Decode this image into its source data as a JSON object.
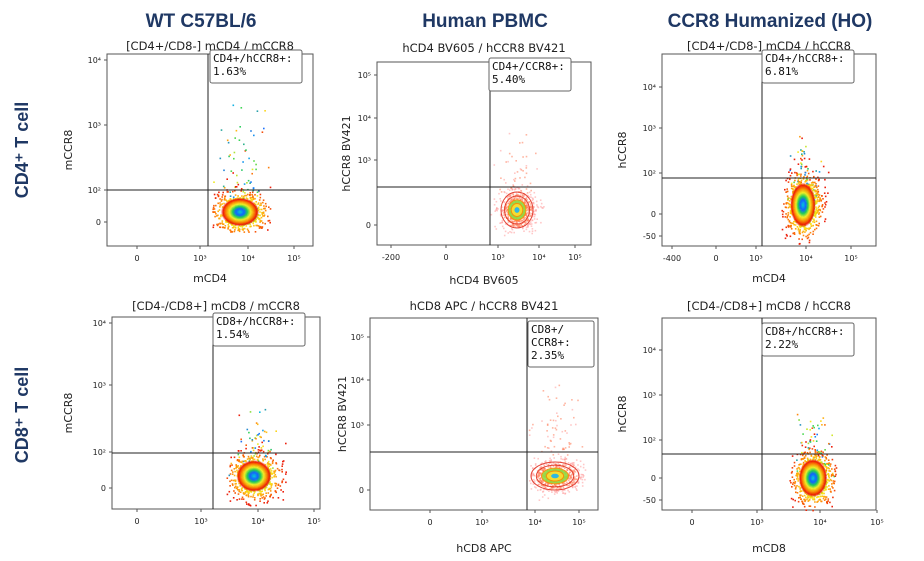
{
  "chart_data": [
    {
      "type": "scatter",
      "title": "[CD4+/CD8-] mCD4 / mCCR8",
      "xlabel": "mCD4",
      "ylabel": "mCCR8",
      "x_ticks": [
        "0",
        "10³",
        "10⁴",
        "10⁵"
      ],
      "y_ticks": [
        "0",
        "10²",
        "10³",
        "10⁴"
      ],
      "gate_label": [
        "CD4+/hCCR8+:",
        "1.63%"
      ],
      "gate_percent": 1.63,
      "colormap": "jet-density"
    },
    {
      "type": "scatter",
      "title": "hCD4 BV605 / hCCR8 BV421",
      "xlabel": "hCD4 BV605",
      "ylabel": "hCCR8 BV421",
      "x_ticks": [
        "-200",
        "0",
        "10³",
        "10⁴",
        "10⁵"
      ],
      "y_ticks": [
        "0",
        "10³",
        "10⁴",
        "10⁵"
      ],
      "gate_label": [
        "CD4+/CCR8+:",
        "5.40%"
      ],
      "gate_percent": 5.4,
      "colormap": "contour-density"
    },
    {
      "type": "scatter",
      "title": "[CD4+/CD8-] mCD4 / hCCR8",
      "xlabel": "mCD4",
      "ylabel": "hCCR8",
      "x_ticks": [
        "-400",
        "0",
        "10³",
        "10⁴",
        "10⁵"
      ],
      "y_ticks": [
        "-50",
        "0",
        "10²",
        "10³",
        "10⁴"
      ],
      "gate_label": [
        "CD4+/hCCR8+:",
        "6.81%"
      ],
      "gate_percent": 6.81,
      "colormap": "jet-density"
    },
    {
      "type": "scatter",
      "title": "[CD4-/CD8+] mCD8 / mCCR8",
      "xlabel": "",
      "ylabel": "mCCR8",
      "x_ticks": [
        "0",
        "10³",
        "10⁴",
        "10⁵"
      ],
      "y_ticks": [
        "0",
        "10²",
        "10³",
        "10⁴"
      ],
      "gate_label": [
        "CD8+/hCCR8+:",
        "1.54%"
      ],
      "gate_percent": 1.54,
      "colormap": "jet-density"
    },
    {
      "type": "scatter",
      "title": "hCD8 APC / hCCR8 BV421",
      "xlabel": "hCD8 APC",
      "ylabel": "hCCR8 BV421",
      "x_ticks": [
        "0",
        "10³",
        "10⁴",
        "10⁵"
      ],
      "y_ticks": [
        "0",
        "10³",
        "10⁴",
        "10⁵"
      ],
      "gate_label": [
        "CD8+/",
        "CCR8+:",
        "2.35%"
      ],
      "gate_percent": 2.35,
      "colormap": "contour-density"
    },
    {
      "type": "scatter",
      "title": "[CD4-/CD8+] mCD8 / hCCR8",
      "xlabel": "mCD8",
      "ylabel": "hCCR8",
      "x_ticks": [
        "0",
        "10³",
        "10⁴",
        "10⁵"
      ],
      "y_ticks": [
        "-50",
        "0",
        "10²",
        "10³",
        "10⁴"
      ],
      "gate_label": [
        "CD8+/hCCR8+:",
        "2.22%"
      ],
      "gate_percent": 2.22,
      "colormap": "jet-density"
    }
  ],
  "column_titles": [
    "WT C57BL/6",
    "Human PBMC",
    "CCR8 Humanized (HO)"
  ],
  "row_titles": [
    "CD4⁺ T cell",
    "CD8⁺ T cell"
  ],
  "colors": {
    "title": "#1f3864",
    "frame": "#555555"
  }
}
